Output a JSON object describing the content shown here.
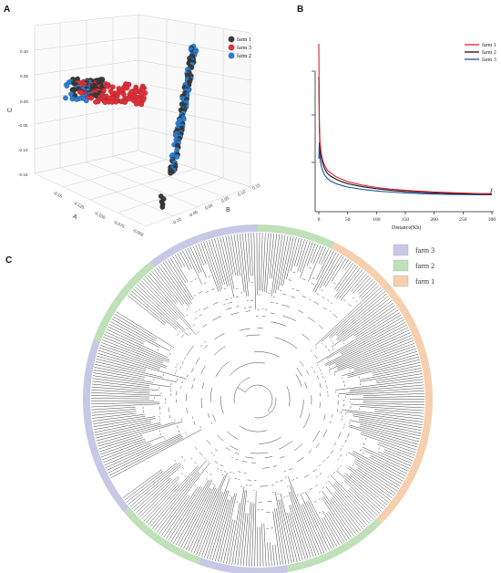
{
  "panels": {
    "a_letter": "A",
    "b_letter": "B",
    "c_letter": "C"
  },
  "chart_data": [
    {
      "type": "scatter",
      "panel": "A",
      "title": "",
      "zlabel": "C",
      "xlabel": "A",
      "ylabel": "B",
      "z_ticks": [
        "0.10",
        "0.05",
        "0.00",
        "-0.05",
        "-0.10",
        "-0.15"
      ],
      "x_ticks": [
        "-0.15",
        "-0.125",
        "-0.100",
        "-0.075",
        "-0.050"
      ],
      "y_ticks": [
        "0.15",
        "0.10",
        "0.05",
        "0.00",
        "-0.05",
        "-0.10"
      ],
      "grid": true,
      "legend_position": "top-right",
      "series": [
        {
          "name": "farm 1",
          "color": "#3a3a3a",
          "group_main": "diagonal band",
          "group_side": "upper-left cluster"
        },
        {
          "name": "farm 3",
          "color": "#e0303a",
          "group_main": "upper-left cluster"
        },
        {
          "name": "farm 2",
          "color": "#2a7fd4",
          "group_main": "diagonal band",
          "group_side": "upper-left cluster"
        }
      ]
    },
    {
      "type": "line",
      "panel": "B",
      "title": "",
      "xlabel": "Distance(Kb)",
      "ylabel": "",
      "xlim": [
        0,
        300
      ],
      "x_ticks": [
        0,
        50,
        100,
        150,
        200,
        250,
        300
      ],
      "grid": false,
      "legend_position": "top-right",
      "series": [
        {
          "name": "farm 1",
          "color": "#e0202a",
          "x": [
            0,
            1,
            2,
            4,
            6,
            10,
            15,
            20,
            30,
            40,
            50,
            75,
            100,
            125,
            150,
            175,
            200,
            225,
            250,
            275,
            298,
            300
          ],
          "y": [
            1.0,
            0.52,
            0.4,
            0.34,
            0.3,
            0.26,
            0.23,
            0.215,
            0.19,
            0.175,
            0.16,
            0.14,
            0.125,
            0.115,
            0.108,
            0.102,
            0.098,
            0.094,
            0.091,
            0.088,
            0.088,
            0.12
          ]
        },
        {
          "name": "farm 2",
          "color": "#111111",
          "x": [
            0,
            1,
            2,
            4,
            6,
            10,
            15,
            20,
            30,
            40,
            50,
            75,
            100,
            125,
            150,
            175,
            200,
            225,
            250,
            275,
            300
          ],
          "y": [
            0.8,
            0.48,
            0.36,
            0.31,
            0.28,
            0.24,
            0.21,
            0.195,
            0.175,
            0.16,
            0.148,
            0.13,
            0.118,
            0.108,
            0.101,
            0.096,
            0.092,
            0.089,
            0.087,
            0.085,
            0.085
          ]
        },
        {
          "name": "farm 3",
          "color": "#1a4fa8",
          "x": [
            0,
            1,
            2,
            4,
            6,
            10,
            15,
            20,
            30,
            40,
            50,
            75,
            100,
            125,
            150,
            175,
            200,
            225,
            250,
            275,
            300
          ],
          "y": [
            0.3,
            0.4,
            0.3,
            0.26,
            0.235,
            0.2,
            0.18,
            0.165,
            0.148,
            0.137,
            0.128,
            0.114,
            0.104,
            0.097,
            0.092,
            0.088,
            0.085,
            0.083,
            0.082,
            0.081,
            0.081
          ]
        }
      ]
    },
    {
      "type": "tree",
      "panel": "C",
      "title": "",
      "layout": "circular",
      "legend_position": "top-right",
      "groups": [
        {
          "name": "farm 3",
          "color": "#c8c8e6",
          "arc_from_deg": 148,
          "arc_to_deg": 405
        },
        {
          "name": "farm 2",
          "color": "#bfe0b8",
          "arc_from_deg": 160,
          "arc_to_deg": 296
        },
        {
          "name": "farm 1",
          "color": "#f6cfae",
          "arc_from_deg": 296,
          "arc_to_deg": 405
        }
      ]
    }
  ]
}
